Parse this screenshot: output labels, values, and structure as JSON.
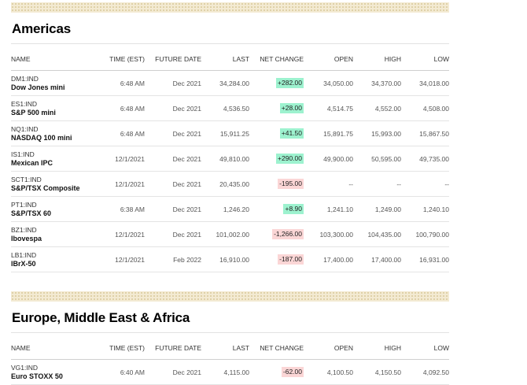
{
  "headers": [
    "NAME",
    "TIME (EST)",
    "FUTURE DATE",
    "LAST",
    "NET CHANGE",
    "OPEN",
    "HIGH",
    "LOW"
  ],
  "americas": {
    "title": "Americas",
    "rows": [
      {
        "symbol": "DM1:IND",
        "name": "Dow Jones mini",
        "time": "6:48 AM",
        "future_date": "Dec 2021",
        "last": "34,284.00",
        "net_change": "+282.00",
        "dir": "up",
        "open": "34,050.00",
        "high": "34,370.00",
        "low": "34,018.00"
      },
      {
        "symbol": "ES1:IND",
        "name": "S&P 500 mini",
        "time": "6:48 AM",
        "future_date": "Dec 2021",
        "last": "4,536.50",
        "net_change": "+28.00",
        "dir": "up",
        "open": "4,514.75",
        "high": "4,552.00",
        "low": "4,508.00"
      },
      {
        "symbol": "NQ1:IND",
        "name": "NASDAQ 100 mini",
        "time": "6:48 AM",
        "future_date": "Dec 2021",
        "last": "15,911.25",
        "net_change": "+41.50",
        "dir": "up",
        "open": "15,891.75",
        "high": "15,993.00",
        "low": "15,867.50"
      },
      {
        "symbol": "IS1:IND",
        "name": "Mexican IPC",
        "time": "12/1/2021",
        "future_date": "Dec 2021",
        "last": "49,810.00",
        "net_change": "+290.00",
        "dir": "up",
        "open": "49,900.00",
        "high": "50,595.00",
        "low": "49,735.00"
      },
      {
        "symbol": "SCT1:IND",
        "name": "S&P/TSX Composite",
        "time": "12/1/2021",
        "future_date": "Dec 2021",
        "last": "20,435.00",
        "net_change": "-195.00",
        "dir": "down",
        "open": "--",
        "high": "--",
        "low": "--"
      },
      {
        "symbol": "PT1:IND",
        "name": "S&P/TSX 60",
        "time": "6:38 AM",
        "future_date": "Dec 2021",
        "last": "1,246.20",
        "net_change": "+8.90",
        "dir": "up",
        "open": "1,241.10",
        "high": "1,249.00",
        "low": "1,240.10"
      },
      {
        "symbol": "BZ1:IND",
        "name": "Ibovespa",
        "time": "12/1/2021",
        "future_date": "Dec 2021",
        "last": "101,002.00",
        "net_change": "-1,266.00",
        "dir": "down",
        "open": "103,300.00",
        "high": "104,435.00",
        "low": "100,790.00"
      },
      {
        "symbol": "LB1:IND",
        "name": "IBrX-50",
        "time": "12/1/2021",
        "future_date": "Feb 2022",
        "last": "16,910.00",
        "net_change": "-187.00",
        "dir": "down",
        "open": "17,400.00",
        "high": "17,400.00",
        "low": "16,931.00"
      }
    ]
  },
  "emea": {
    "title": "Europe, Middle East & Africa",
    "rows": [
      {
        "symbol": "VG1:IND",
        "name": "Euro STOXX 50",
        "time": "6:40 AM",
        "future_date": "Dec 2021",
        "last": "4,115.00",
        "net_change": "-62.00",
        "dir": "down",
        "open": "4,100.50",
        "high": "4,150.50",
        "low": "4,092.50"
      }
    ]
  },
  "colors": {
    "up_bg": "#9df2cf",
    "down_bg": "#fbd6d6",
    "band": "#f3ead2"
  }
}
